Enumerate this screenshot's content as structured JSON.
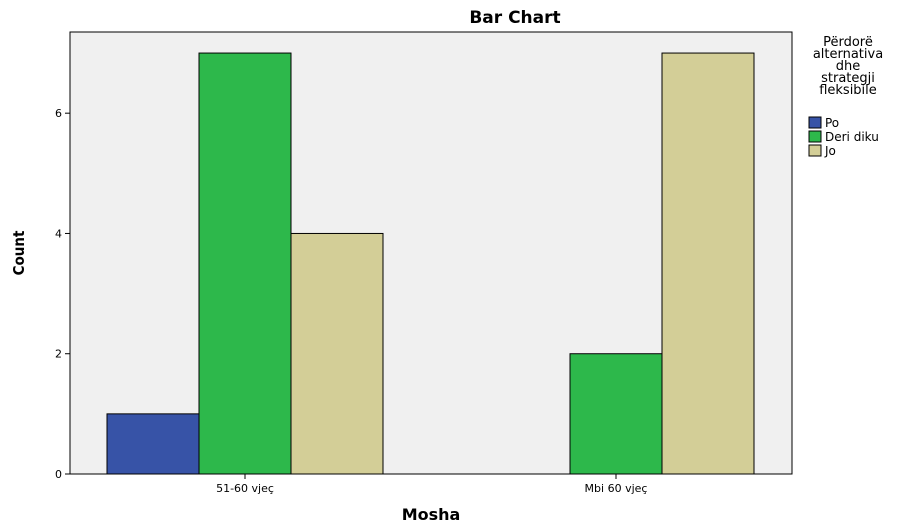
{
  "chart_data": {
    "type": "bar",
    "title": "Bar Chart",
    "xlabel": "Mosha",
    "ylabel": "Count",
    "categories": [
      "51-60 vjeç",
      "Mbi 60 vjeç"
    ],
    "series": [
      {
        "name": "Po",
        "values": [
          1,
          0
        ],
        "color": "#3753a7"
      },
      {
        "name": "Deri diku",
        "values": [
          7,
          2
        ],
        "color": "#2db84b"
      },
      {
        "name": "Jo",
        "values": [
          4,
          7
        ],
        "color": "#d3ce97"
      }
    ],
    "ylim": [
      0,
      7.35
    ],
    "yticks": [
      "0",
      "2",
      "4",
      "6"
    ],
    "plot_background": "#f0f0f0",
    "grid": false,
    "legend": {
      "title_lines": [
        "Përdorë",
        "alternativa",
        "dhe",
        "strategji",
        "fleksibile"
      ],
      "placement": "right"
    }
  }
}
